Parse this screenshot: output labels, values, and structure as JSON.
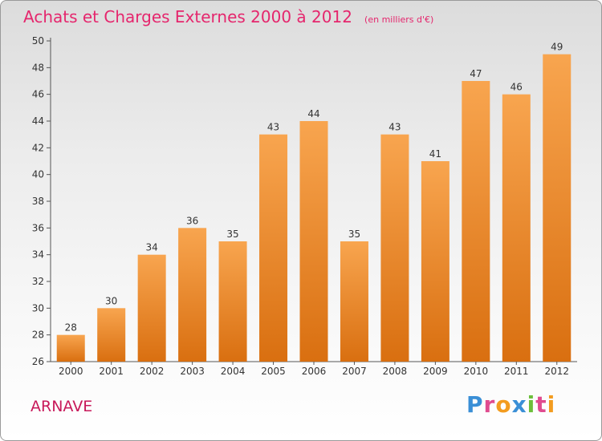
{
  "chart_data": {
    "type": "bar",
    "title": "Achats et Charges Externes 2000 à 2012",
    "unit_note": "(en milliers d'€)",
    "categories": [
      "2000",
      "2001",
      "2002",
      "2003",
      "2004",
      "2005",
      "2006",
      "2007",
      "2008",
      "2009",
      "2010",
      "2011",
      "2012"
    ],
    "values": [
      28,
      30,
      34,
      36,
      35,
      43,
      44,
      35,
      43,
      41,
      47,
      46,
      49
    ],
    "ylim": [
      26,
      50
    ],
    "yticks": [
      26,
      28,
      30,
      32,
      34,
      36,
      38,
      40,
      42,
      44,
      46,
      48,
      50
    ],
    "grid": false,
    "legend": "none",
    "bar_color_top": "#f8a54f",
    "bar_color_bottom": "#d96f10"
  },
  "footer": {
    "commune": "ARNAVE",
    "logo_letters": [
      {
        "ch": "P",
        "color": "#3a8fd6"
      },
      {
        "ch": "r",
        "color": "#e04b8f"
      },
      {
        "ch": "o",
        "color": "#f39c1f"
      },
      {
        "ch": "x",
        "color": "#3a8fd6"
      },
      {
        "ch": "i",
        "color": "#6cbf3a"
      },
      {
        "ch": "t",
        "color": "#e04b8f"
      },
      {
        "ch": "i",
        "color": "#f39c1f"
      }
    ]
  }
}
